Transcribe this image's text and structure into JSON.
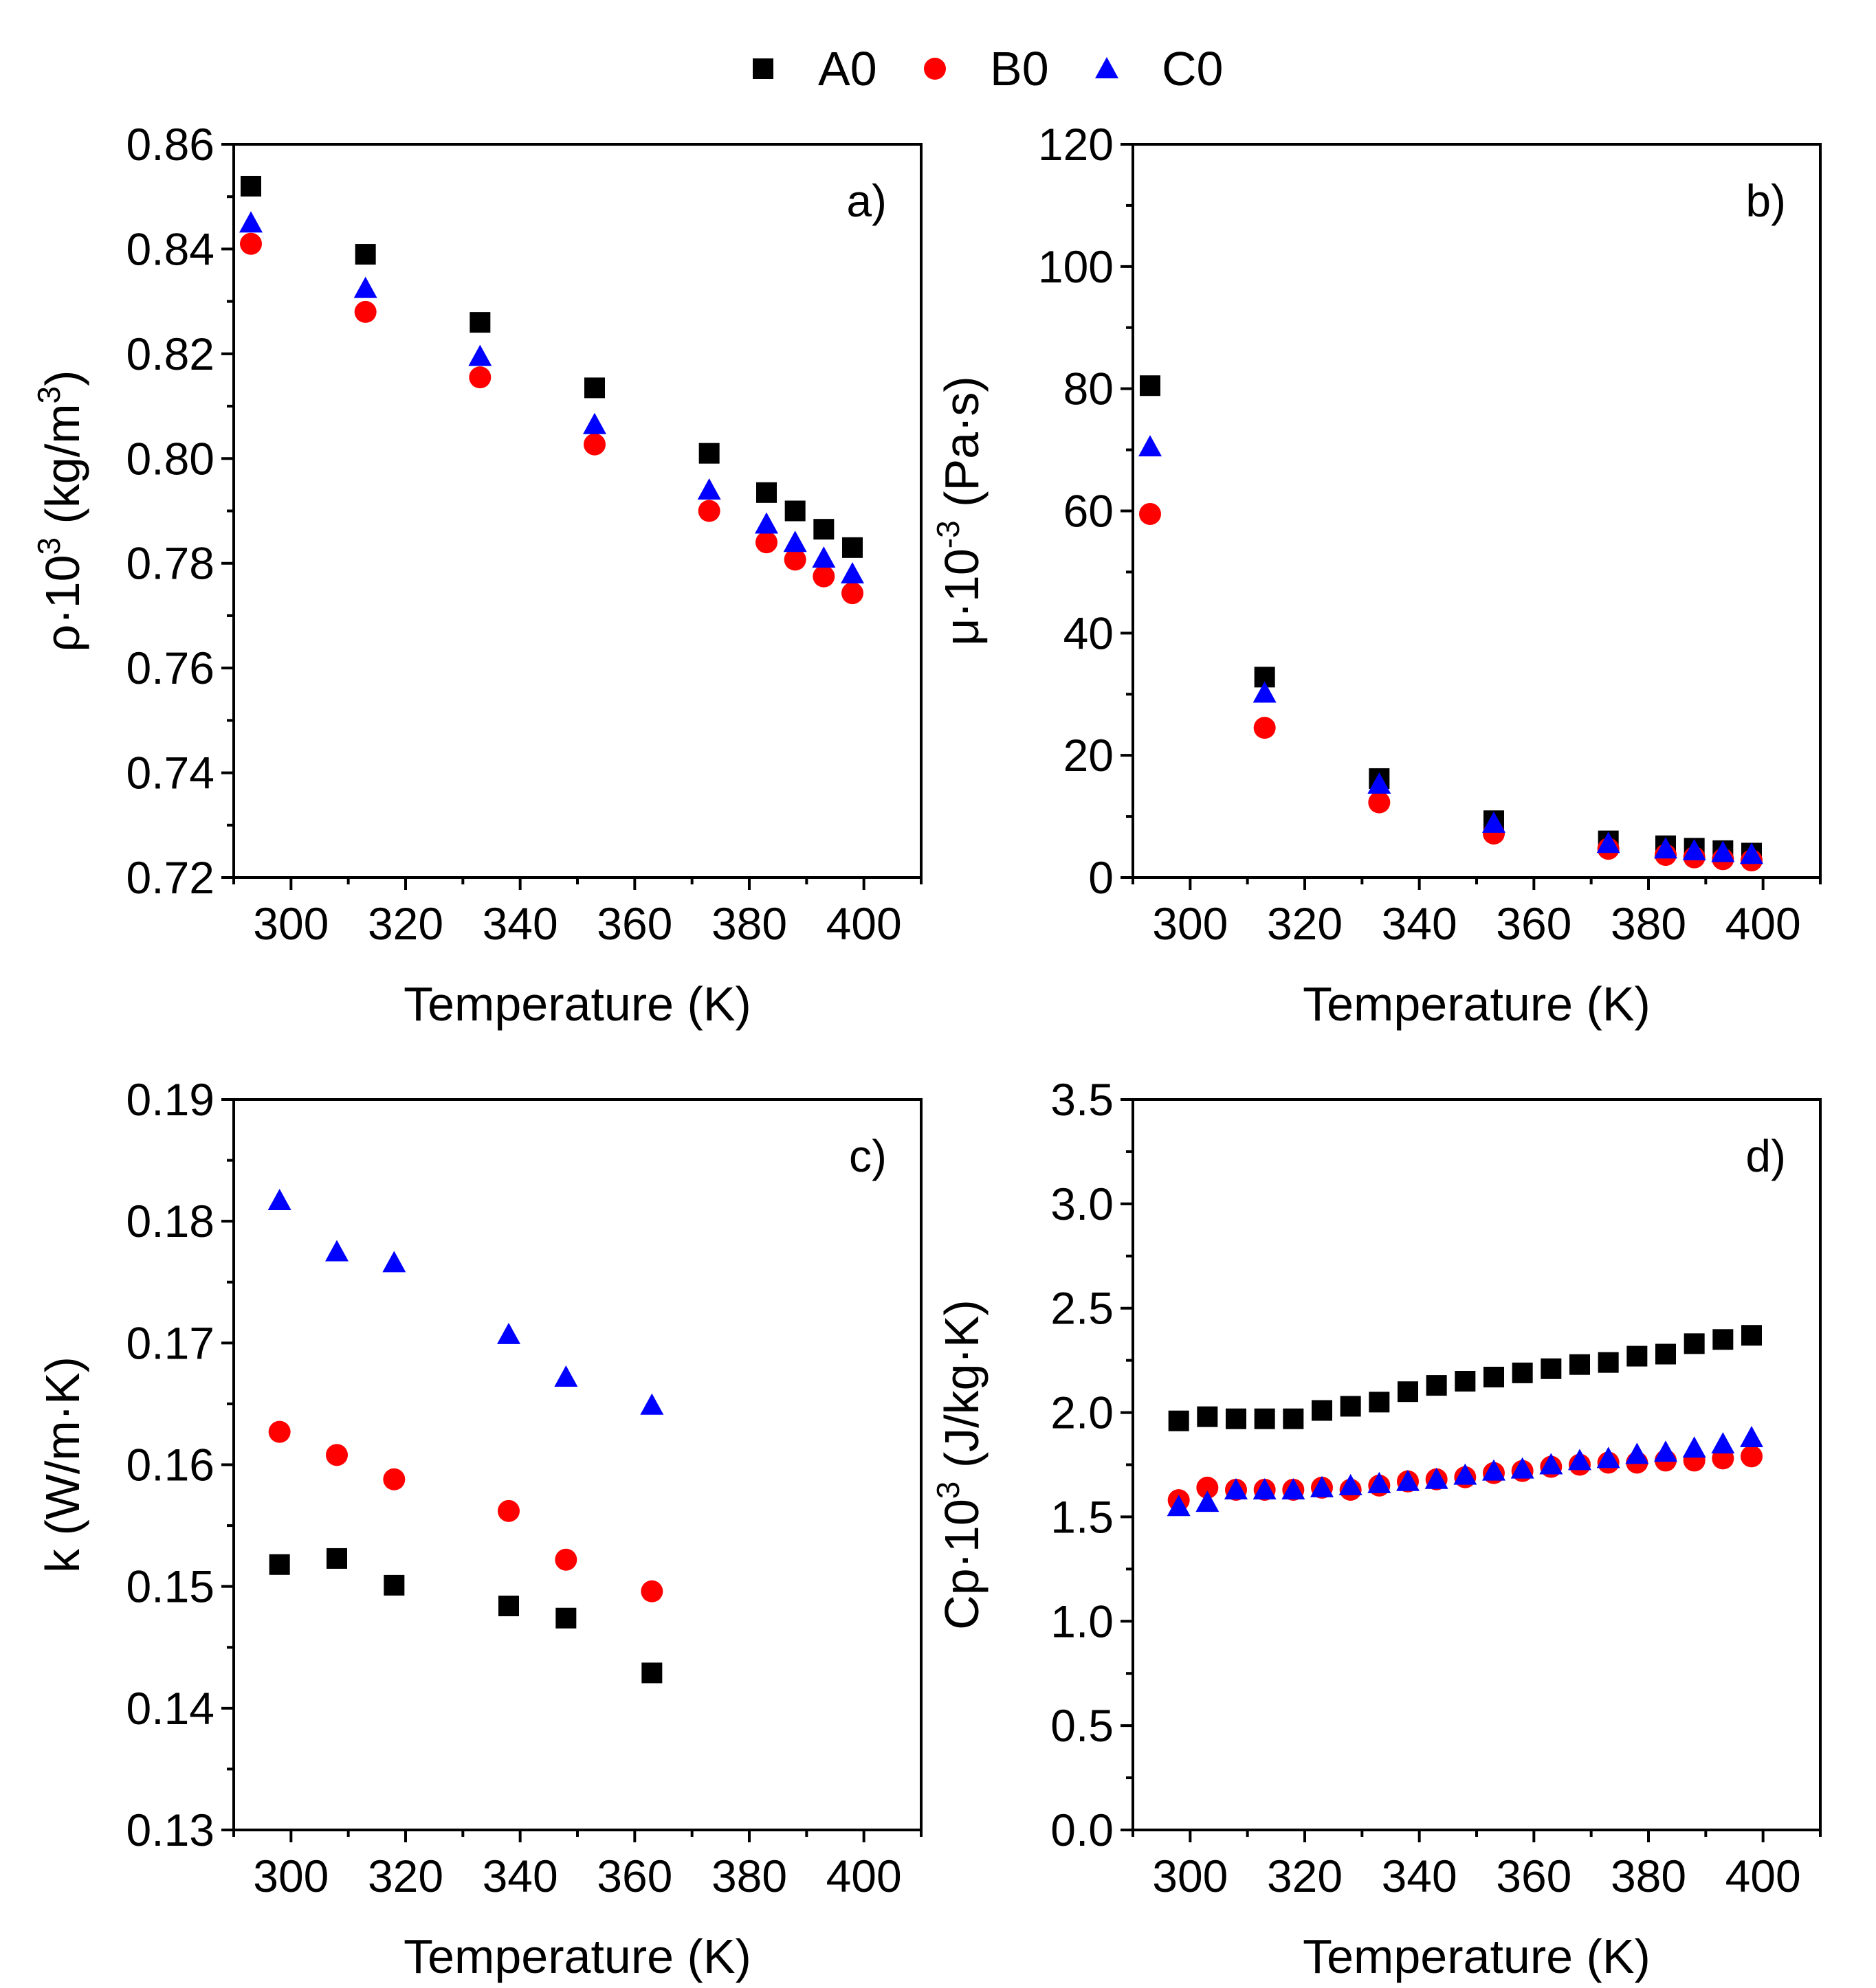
{
  "legend": [
    {
      "name": "A0",
      "marker": "square",
      "color": "#000000"
    },
    {
      "name": "B0",
      "marker": "circle",
      "color": "#ff0000"
    },
    {
      "name": "C0",
      "marker": "triangle",
      "color": "#0000ff"
    }
  ],
  "chart_data": [
    {
      "type": "scatter",
      "panel_label": "a)",
      "xlabel": "Temperature (K)",
      "ylabel": {
        "pre": "ρ·10",
        "sup": "3",
        "post": " (kg/m",
        "sup2": "3",
        "post2": ")"
      },
      "xlim": [
        290,
        410
      ],
      "ylim": [
        0.72,
        0.86
      ],
      "xticks": [
        300,
        320,
        340,
        360,
        380,
        400
      ],
      "xtick_labels": [
        "300",
        "320",
        "340",
        "360",
        "380",
        "400"
      ],
      "yticks": [
        0.72,
        0.74,
        0.76,
        0.78,
        0.8,
        0.82,
        0.84,
        0.86
      ],
      "ytick_labels": [
        "0.72",
        "0.74",
        "0.76",
        "0.78",
        "0.80",
        "0.82",
        "0.84",
        "0.86"
      ],
      "series": [
        {
          "name": "A0",
          "x": [
            293,
            313,
            333,
            353,
            373,
            383,
            388,
            393,
            398
          ],
          "y": [
            0.852,
            0.839,
            0.826,
            0.8135,
            0.801,
            0.7935,
            0.79,
            0.7865,
            0.783
          ]
        },
        {
          "name": "B0",
          "x": [
            293,
            313,
            333,
            353,
            373,
            383,
            388,
            393,
            398
          ],
          "y": [
            0.841,
            0.828,
            0.8155,
            0.8027,
            0.79,
            0.784,
            0.7807,
            0.7775,
            0.7743
          ]
        },
        {
          "name": "C0",
          "x": [
            293,
            313,
            333,
            353,
            373,
            383,
            388,
            393,
            398
          ],
          "y": [
            0.845,
            0.8325,
            0.8195,
            0.8065,
            0.794,
            0.7875,
            0.784,
            0.781,
            0.778
          ]
        }
      ]
    },
    {
      "type": "scatter",
      "panel_label": "b)",
      "xlabel": "Temperature (K)",
      "ylabel": {
        "pre": "μ·10",
        "sup": "-3",
        "post": " (Pa·s)",
        "sup2": "",
        "post2": ""
      },
      "xlim": [
        290,
        410
      ],
      "ylim": [
        0,
        120
      ],
      "xticks": [
        300,
        320,
        340,
        360,
        380,
        400
      ],
      "xtick_labels": [
        "300",
        "320",
        "340",
        "360",
        "380",
        "400"
      ],
      "yticks": [
        0,
        20,
        40,
        60,
        80,
        100,
        120
      ],
      "ytick_labels": [
        "0",
        "20",
        "40",
        "60",
        "80",
        "100",
        "120"
      ],
      "series": [
        {
          "name": "A0",
          "x": [
            293,
            313,
            333,
            353,
            373,
            383,
            388,
            393,
            398
          ],
          "y": [
            80.5,
            32.8,
            16.2,
            9.3,
            6.0,
            5.2,
            4.8,
            4.4,
            4.0
          ]
        },
        {
          "name": "B0",
          "x": [
            293,
            313,
            333,
            353,
            373,
            383,
            388,
            393,
            398
          ],
          "y": [
            59.5,
            24.5,
            12.3,
            7.2,
            4.7,
            3.7,
            3.3,
            3.0,
            2.8
          ]
        },
        {
          "name": "C0",
          "x": [
            293,
            313,
            333,
            353,
            373,
            383,
            388,
            393,
            398
          ],
          "y": [
            70.5,
            30.2,
            15.3,
            8.9,
            5.6,
            4.7,
            4.4,
            4.1,
            3.8
          ]
        }
      ]
    },
    {
      "type": "scatter",
      "panel_label": "c)",
      "xlabel": "Temperature (K)",
      "ylabel": {
        "pre": "k",
        "sup": "",
        "post": " (W/m·K)",
        "sup2": "",
        "post2": ""
      },
      "xlim": [
        290,
        410
      ],
      "ylim": [
        0.13,
        0.19
      ],
      "xticks": [
        300,
        320,
        340,
        360,
        380,
        400
      ],
      "xtick_labels": [
        "300",
        "320",
        "340",
        "360",
        "380",
        "400"
      ],
      "yticks": [
        0.13,
        0.14,
        0.15,
        0.16,
        0.17,
        0.18,
        0.19
      ],
      "ytick_labels": [
        "0.13",
        "0.14",
        "0.15",
        "0.16",
        "0.17",
        "0.18",
        "0.19"
      ],
      "series": [
        {
          "name": "A0",
          "x": [
            298,
            308,
            318,
            338,
            348,
            363
          ],
          "y": [
            0.1518,
            0.1523,
            0.1501,
            0.1484,
            0.1474,
            0.1429
          ]
        },
        {
          "name": "B0",
          "x": [
            298,
            308,
            318,
            338,
            348,
            363
          ],
          "y": [
            0.1627,
            0.1608,
            0.1588,
            0.1562,
            0.1522,
            0.1496
          ]
        },
        {
          "name": "C0",
          "x": [
            298,
            308,
            318,
            338,
            348,
            363
          ],
          "y": [
            0.1817,
            0.1775,
            0.1766,
            0.1707,
            0.1672,
            0.1649
          ]
        }
      ]
    },
    {
      "type": "scatter",
      "panel_label": "d)",
      "xlabel": "Temperature (K)",
      "ylabel": {
        "pre": "Cp·10",
        "sup": "3",
        "post": " (J/kg·K)",
        "sup2": "",
        "post2": ""
      },
      "xlim": [
        290,
        410
      ],
      "ylim": [
        0,
        3.5
      ],
      "xticks": [
        300,
        320,
        340,
        360,
        380,
        400
      ],
      "xtick_labels": [
        "300",
        "320",
        "340",
        "360",
        "380",
        "400"
      ],
      "yticks": [
        0,
        0.5,
        1.0,
        1.5,
        2.0,
        2.5,
        3.0,
        3.5
      ],
      "ytick_labels": [
        "0.0",
        "0.5",
        "1.0",
        "1.5",
        "2.0",
        "2.5",
        "3.0",
        "3.5"
      ],
      "series": [
        {
          "name": "A0",
          "x": [
            298,
            303,
            308,
            313,
            318,
            323,
            328,
            333,
            338,
            343,
            348,
            353,
            358,
            363,
            368,
            373,
            378,
            383,
            388,
            393,
            398
          ],
          "y": [
            1.96,
            1.98,
            1.97,
            1.97,
            1.97,
            2.01,
            2.03,
            2.05,
            2.1,
            2.13,
            2.15,
            2.17,
            2.19,
            2.21,
            2.23,
            2.24,
            2.27,
            2.28,
            2.33,
            2.35,
            2.37
          ]
        },
        {
          "name": "B0",
          "x": [
            298,
            303,
            308,
            313,
            318,
            323,
            328,
            333,
            338,
            343,
            348,
            353,
            358,
            363,
            368,
            373,
            378,
            383,
            388,
            393,
            398
          ],
          "y": [
            1.58,
            1.64,
            1.63,
            1.63,
            1.63,
            1.64,
            1.63,
            1.65,
            1.67,
            1.68,
            1.69,
            1.71,
            1.72,
            1.74,
            1.75,
            1.76,
            1.76,
            1.77,
            1.77,
            1.78,
            1.79
          ]
        },
        {
          "name": "C0",
          "x": [
            298,
            303,
            308,
            313,
            318,
            323,
            328,
            333,
            338,
            343,
            348,
            353,
            358,
            363,
            368,
            373,
            378,
            383,
            388,
            393,
            398
          ],
          "y": [
            1.55,
            1.57,
            1.63,
            1.63,
            1.63,
            1.64,
            1.65,
            1.66,
            1.67,
            1.68,
            1.7,
            1.72,
            1.73,
            1.75,
            1.77,
            1.78,
            1.8,
            1.81,
            1.83,
            1.85,
            1.88
          ]
        }
      ]
    }
  ]
}
